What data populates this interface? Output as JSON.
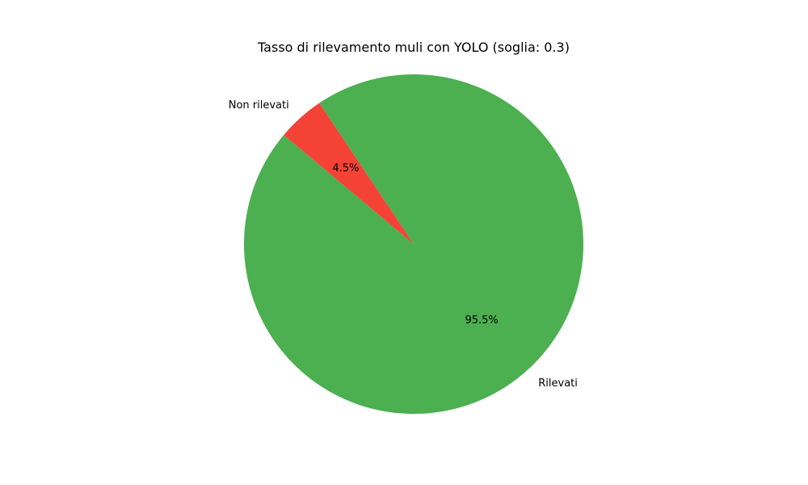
{
  "chart_data": {
    "type": "pie",
    "title": "Tasso di rilevamento muli con YOLO (soglia: 0.3)",
    "slices": [
      {
        "label": "Rilevati",
        "value": 95.5,
        "pct_label": "95.5%",
        "color": "#4caf50"
      },
      {
        "label": "Non rilevati",
        "value": 4.5,
        "pct_label": "4.5%",
        "color": "#f44336"
      }
    ],
    "start_angle_deg": 140,
    "direction": "counterclockwise",
    "legend": "none"
  }
}
